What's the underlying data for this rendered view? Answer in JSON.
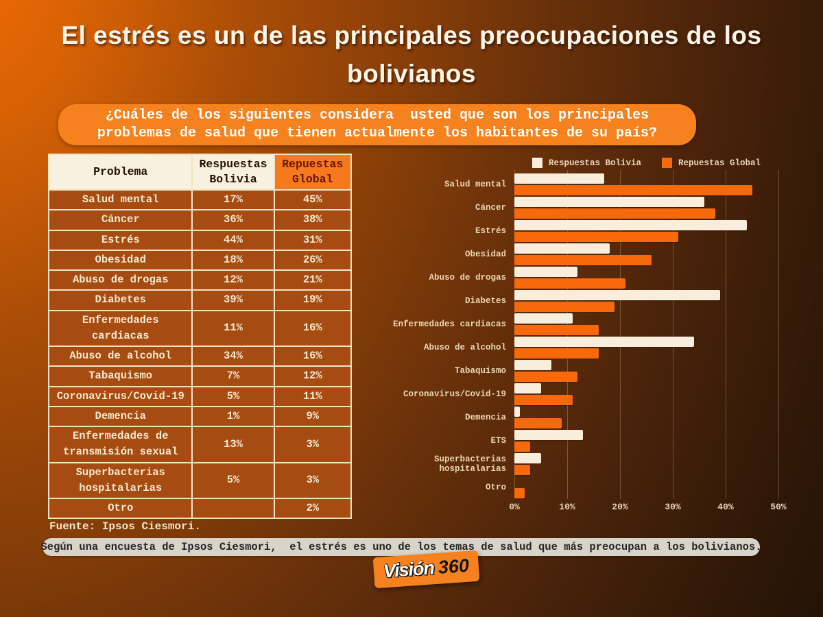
{
  "title": {
    "line1": "El estrés es un de las principales preocupaciones de los",
    "line2": "bolivianos"
  },
  "question": {
    "line1": "¿Cuáles de los siguientes considera  usted que son los principales",
    "line2": "problemas de salud que tienen actualmente los habitantes de su país?"
  },
  "table": {
    "headers": [
      "Problema",
      "Respuestas Bolivia",
      "Repuestas Global"
    ],
    "rows": [
      [
        "Salud mental",
        "17%",
        "45%"
      ],
      [
        "Cáncer",
        "36%",
        "38%"
      ],
      [
        "Estrés",
        "44%",
        "31%"
      ],
      [
        "Obesidad",
        "18%",
        "26%"
      ],
      [
        "Abuso de drogas",
        "12%",
        "21%"
      ],
      [
        "Diabetes",
        "39%",
        "19%"
      ],
      [
        "Enfermedades cardiacas",
        "11%",
        "16%"
      ],
      [
        "Abuso de alcohol",
        "34%",
        "16%"
      ],
      [
        "Tabaquismo",
        "7%",
        "12%"
      ],
      [
        "Coronavirus/Covid-19",
        "5%",
        "11%"
      ],
      [
        "Demencia",
        "1%",
        "9%"
      ],
      [
        "Enfermedades de transmisión sexual",
        "13%",
        "3%"
      ],
      [
        "Superbacterias hospitalarias",
        "5%",
        "3%"
      ],
      [
        "Otro",
        "",
        "2%"
      ]
    ]
  },
  "source": "Fuente: Ipsos Ciesmori.",
  "chart_data": {
    "type": "bar",
    "orientation": "horizontal",
    "categories": [
      "Salud mental",
      "Cáncer",
      "Estrés",
      "Obesidad",
      "Abuso de drogas",
      "Diabetes",
      "Enfermedades cardiacas",
      "Abuso de alcohol",
      "Tabaquismo",
      "Coronavirus/Covid-19",
      "Demencia",
      "ETS",
      "Superbacterias hospitalarias",
      "Otro"
    ],
    "series": [
      {
        "name": "Respuestas Bolivia",
        "color": "#f8eedb",
        "values": [
          17,
          36,
          44,
          18,
          12,
          39,
          11,
          34,
          7,
          5,
          1,
          13,
          5,
          0
        ]
      },
      {
        "name": "Repuestas Global",
        "color": "#f8690b",
        "values": [
          45,
          38,
          31,
          26,
          21,
          19,
          16,
          16,
          12,
          11,
          9,
          3,
          3,
          2
        ]
      }
    ],
    "xlim": [
      0,
      50
    ],
    "x_ticks": [
      "0%",
      "10%",
      "20%",
      "30%",
      "40%",
      "50%"
    ],
    "legend_position": "top",
    "grid": true
  },
  "footer_note": "Según una encuesta de Ipsos Ciesmori,  el estrés es uno de los temas de salud que más preocupan a los bolivianos.",
  "logo": {
    "part1": "Visión",
    "part2": "360"
  },
  "colors": {
    "accent_orange": "#f5821f",
    "bar_cream": "#f8eedb",
    "bar_orange": "#f8690b",
    "table_row_bg": "#a64c12",
    "table_border": "#f2e3c4",
    "note_bg": "#d8d4ca"
  }
}
